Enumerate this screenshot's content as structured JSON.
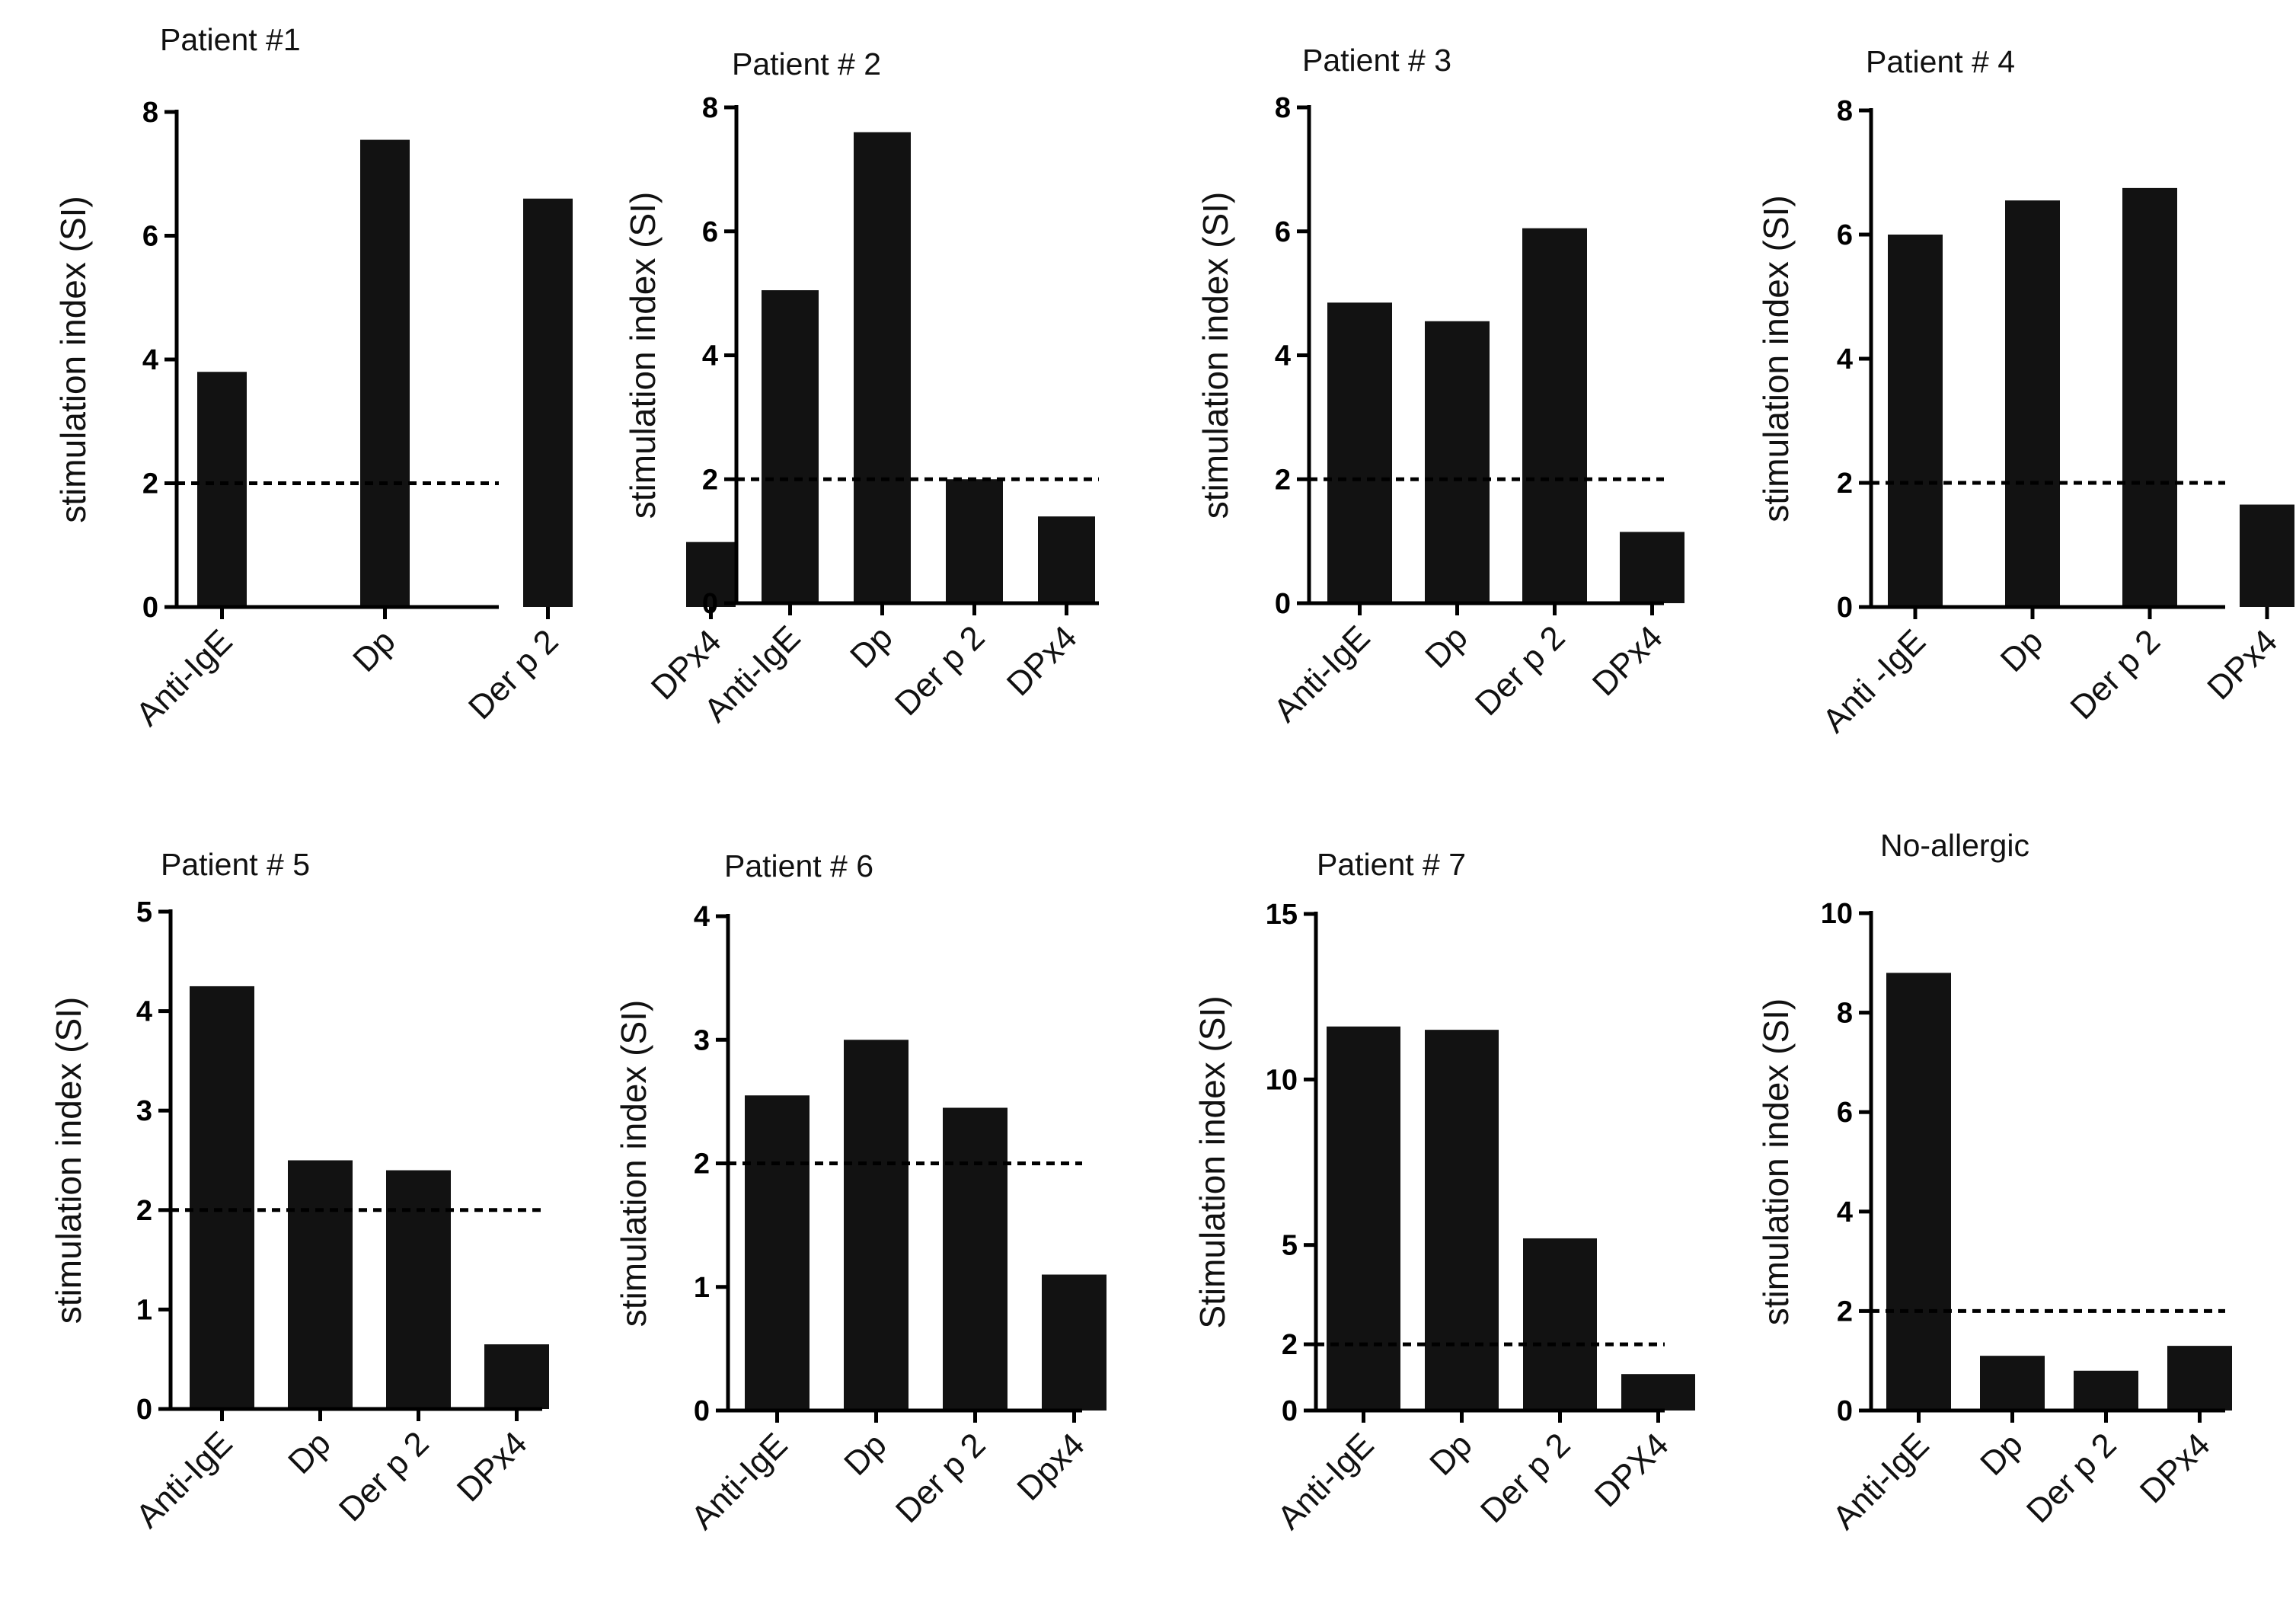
{
  "chart_data": [
    {
      "type": "bar",
      "title": "Patient #1",
      "ylabel": "stimulation index (SI)",
      "categories": [
        "Anti-IgE",
        "Dp",
        "Der p 2",
        "DPx4"
      ],
      "values": [
        3.8,
        7.55,
        6.6,
        1.05
      ],
      "ylim": [
        0,
        8
      ],
      "yticks": [
        0,
        2,
        4,
        6,
        8
      ],
      "threshold": 2
    },
    {
      "type": "bar",
      "title": "Patient # 2",
      "ylabel": "stimulation index (SI)",
      "categories": [
        "Anti-IgE",
        "Dp",
        "Der p 2",
        "DPx4"
      ],
      "values": [
        5.05,
        7.6,
        2.0,
        1.4
      ],
      "ylim": [
        0,
        8
      ],
      "yticks": [
        0,
        2,
        4,
        6,
        8
      ],
      "threshold": 2
    },
    {
      "type": "bar",
      "title": "Patient # 3",
      "ylabel": "stimulation index (SI)",
      "categories": [
        "Anti-IgE",
        "Dp",
        "Der p 2",
        "DPx4"
      ],
      "values": [
        4.85,
        4.55,
        6.05,
        1.15
      ],
      "ylim": [
        0,
        8
      ],
      "yticks": [
        0,
        2,
        4,
        6,
        8
      ],
      "threshold": 2
    },
    {
      "type": "bar",
      "title": "Patient # 4",
      "ylabel": "stimulation index (SI)",
      "categories": [
        "Anti -IgE",
        "Dp",
        "Der p 2",
        "DPx4"
      ],
      "values": [
        6.0,
        6.55,
        6.75,
        1.65
      ],
      "ylim": [
        0,
        8
      ],
      "yticks": [
        0,
        2,
        4,
        6,
        8
      ],
      "threshold": 2
    },
    {
      "type": "bar",
      "title": "Patient # 5",
      "ylabel": "stimulation index (SI)",
      "categories": [
        "Anti-IgE",
        "Dp",
        "Der p 2",
        "DPx4"
      ],
      "values": [
        4.25,
        2.5,
        2.4,
        0.65
      ],
      "ylim": [
        0,
        5
      ],
      "yticks": [
        0,
        1,
        2,
        3,
        4,
        5
      ],
      "threshold": 2
    },
    {
      "type": "bar",
      "title": "Patient # 6",
      "ylabel": "stimulation index (SI)",
      "categories": [
        "Anti-IgE",
        "Dp",
        "Der p 2",
        "Dpx4"
      ],
      "values": [
        2.55,
        3.0,
        2.45,
        1.1
      ],
      "ylim": [
        0,
        4
      ],
      "yticks": [
        0,
        1,
        2,
        3,
        4
      ],
      "threshold": 2
    },
    {
      "type": "bar",
      "title": "Patient # 7",
      "ylabel": "Stimulation index (SI)",
      "categories": [
        "Anti-IgE",
        "Dp",
        "Der p 2",
        "DPX4"
      ],
      "values": [
        11.6,
        11.5,
        5.2,
        1.1
      ],
      "ylim": [
        0,
        15
      ],
      "yticks": [
        0,
        2,
        5,
        10,
        15
      ],
      "threshold": 2
    },
    {
      "type": "bar",
      "title": "No-allergic",
      "ylabel": "stimulation index (SI)",
      "categories": [
        "Anti-IgE",
        "Dp",
        "Der p 2",
        "DPx4"
      ],
      "values": [
        8.8,
        1.1,
        0.8,
        1.3
      ],
      "ylim": [
        0,
        10
      ],
      "yticks": [
        0,
        2,
        4,
        6,
        8,
        10
      ],
      "threshold": 2
    }
  ]
}
